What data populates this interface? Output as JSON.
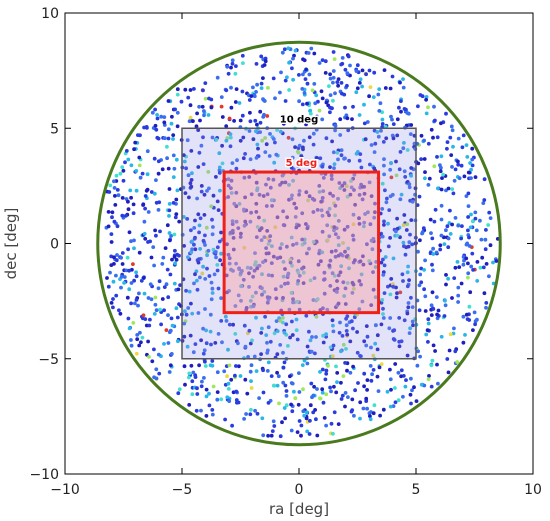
{
  "chart_data": {
    "type": "scatter",
    "title": "",
    "xlabel": "ra [deg]",
    "ylabel": "dec [deg]",
    "xlim": [
      -10,
      10
    ],
    "ylim": [
      -10,
      10
    ],
    "xticks": [
      "−10",
      "−5",
      "0",
      "5",
      "10"
    ],
    "yticks": [
      "−10",
      "−5",
      "0",
      "5",
      "10"
    ],
    "grid": false,
    "points": {
      "distribution": "uniform disk",
      "center": [
        0,
        0
      ],
      "radius_deg": 8.5,
      "approx_count": 2000,
      "colormap": [
        "#1f1fbf",
        "#2a3ce0",
        "#3a6ef0",
        "#28b8e8",
        "#40e0d0",
        "#a0e85a",
        "#f0d840",
        "#e03a2a"
      ],
      "dominant_colors": [
        "#1f1fbf",
        "#2a3ce0",
        "#3a6ef0"
      ]
    },
    "overlays": [
      {
        "shape": "circle",
        "name": "field-circle",
        "center": [
          0,
          0
        ],
        "radius": 8.6,
        "edge_color": "#4a7a1e",
        "fill": "none"
      },
      {
        "shape": "rect",
        "name": "10-deg-box",
        "label": "10 deg",
        "x_range": [
          -5,
          5
        ],
        "y_range": [
          -5,
          5
        ],
        "edge_color": "#555555",
        "fill_color": "#8a8ae8",
        "fill_opacity": 0.25,
        "label_color": "#000000"
      },
      {
        "shape": "rect",
        "name": "5-deg-box",
        "label": "5 deg",
        "x_range": [
          -3.2,
          3.4
        ],
        "y_range": [
          -3,
          3.1
        ],
        "edge_color": "#f02018",
        "fill_color": "#ff9a9a",
        "fill_opacity": 0.4,
        "label_color": "#f02018"
      }
    ]
  }
}
